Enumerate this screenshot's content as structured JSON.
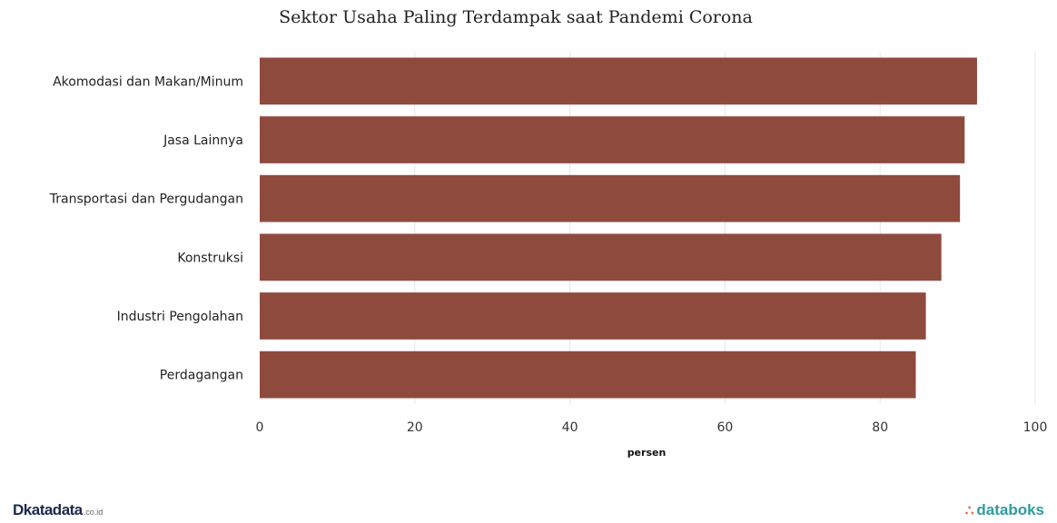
{
  "chart_data": {
    "type": "bar",
    "orientation": "horizontal",
    "title": "Sektor Usaha Paling Terdampak saat Pandemi Corona",
    "xlabel": "persen",
    "ylabel": "",
    "categories": [
      "Akomodasi dan Makan/Minum",
      "Jasa Lainnya",
      "Transportasi dan Pergudangan",
      "Konstruksi",
      "Industri Pengolahan",
      "Perdagangan"
    ],
    "values": [
      92.5,
      90.9,
      90.3,
      87.9,
      85.9,
      84.6
    ],
    "xlim": [
      0,
      100
    ],
    "xticks": [
      "0",
      "20",
      "40",
      "60",
      "80",
      "100"
    ],
    "grid": true,
    "legend": "none",
    "bar_color": "#8f4a3e"
  },
  "footer": {
    "left_logo_mark": "D",
    "left_logo_text": "katadata",
    "left_logo_suffix": ".co.id",
    "right_logo_icon": "databoks-icon",
    "right_logo_text": "databoks"
  }
}
